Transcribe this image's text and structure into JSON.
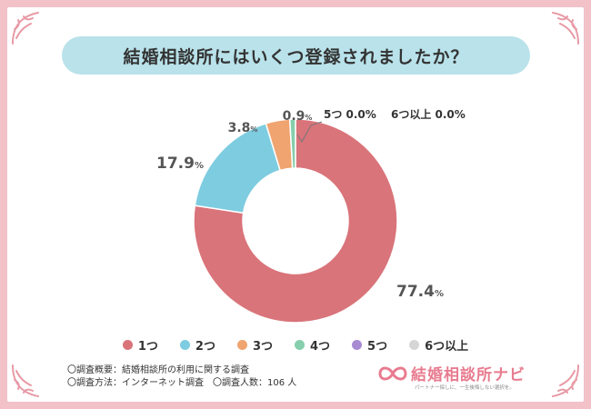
{
  "title": "結婚相談所にはいくつ登録されましたか？",
  "chart_data": {
    "type": "pie",
    "title": "結婚相談所にはいくつ登録されましたか？",
    "categories": [
      "1つ",
      "2つ",
      "3つ",
      "4つ",
      "5つ",
      "6つ以上"
    ],
    "values": [
      77.4,
      17.9,
      3.8,
      0.9,
      0.0,
      0.0
    ],
    "colors": [
      "#d9747a",
      "#7ecce0",
      "#f0a470",
      "#86cfac",
      "#a78bd2",
      "#d6d6d6"
    ],
    "labels": [
      "77.4",
      "17.9",
      "3.8",
      "0.9",
      "",
      ""
    ],
    "unit": "%",
    "extra_label": "5つ 0.0%　 6つ以上 0.0%"
  },
  "notes": {
    "line1": "〇調査概要：結婚相談所の利用に関する調査",
    "line2a": "〇調査方法：インターネット調査",
    "line2b": "〇調査人数：106 人"
  },
  "brand": {
    "name": "結婚相談所ナビ",
    "tagline": "パートナー探しに、一生後悔しない選択を。"
  }
}
